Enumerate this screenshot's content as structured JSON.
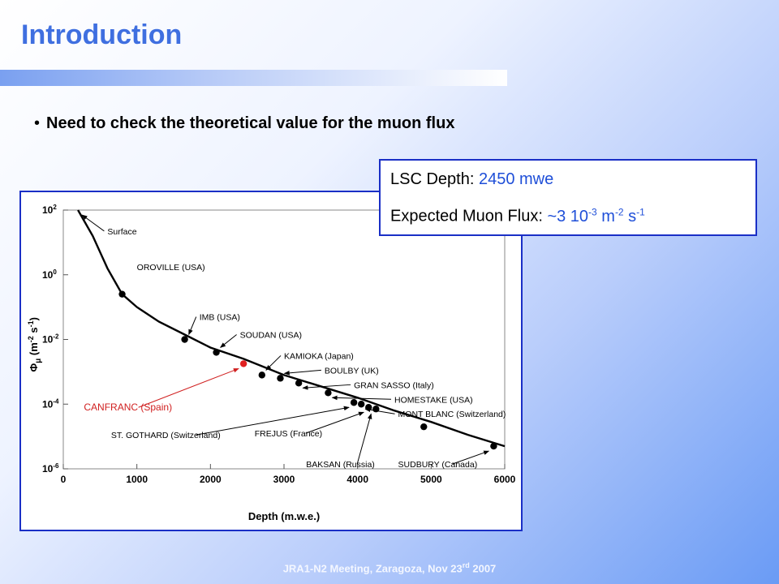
{
  "slide": {
    "title": "Introduction",
    "bullet": "Need to check the theoretical value for the muon flux",
    "footer_prefix": "JRA1-N2 Meeting, Zaragoza, Nov 23",
    "footer_sup": "rd",
    "footer_suffix": " 2007"
  },
  "info_box": {
    "depth_label": "LSC Depth: ",
    "depth_value": "2450 mwe",
    "flux_label": "Expected Muon Flux: ",
    "flux_value_base": "~3 10",
    "flux_value_exp": "-3",
    "flux_unit_m": " m",
    "flux_unit_m_exp": "-2",
    "flux_unit_s": " s",
    "flux_unit_s_exp": "-1"
  },
  "chart_data": {
    "type": "line",
    "title": "",
    "xlabel": "Depth (m.w.e.)",
    "ylabel_parts": [
      "Φ",
      "μ",
      " (m",
      "-2",
      " s",
      "-1",
      ")"
    ],
    "xlim": [
      0,
      6000
    ],
    "ylim_log10": [
      -6,
      2
    ],
    "y_scale": "log",
    "grid": false,
    "x_ticks": [
      {
        "value": 0,
        "label": "0"
      },
      {
        "value": 1000,
        "label": "1000"
      },
      {
        "value": 2000,
        "label": "2000"
      },
      {
        "value": 3000,
        "label": "3000"
      },
      {
        "value": 4000,
        "label": "4000"
      },
      {
        "value": 5000,
        "label": "5000"
      },
      {
        "value": 6000,
        "label": "6000"
      }
    ],
    "y_ticks": [
      {
        "exp": 2,
        "base": "10",
        "sup": "2"
      },
      {
        "exp": 0,
        "base": "10",
        "sup": "0"
      },
      {
        "exp": -2,
        "base": "10",
        "sup": "-2"
      },
      {
        "exp": -4,
        "base": "10",
        "sup": "-4"
      },
      {
        "exp": -6,
        "base": "10",
        "sup": "-6"
      }
    ],
    "curve": [
      {
        "x": 200,
        "log10y": 2.0
      },
      {
        "x": 400,
        "log10y": 1.2
      },
      {
        "x": 600,
        "log10y": 0.2
      },
      {
        "x": 800,
        "log10y": -0.6
      },
      {
        "x": 1000,
        "log10y": -1.0
      },
      {
        "x": 1300,
        "log10y": -1.45
      },
      {
        "x": 1650,
        "log10y": -1.85
      },
      {
        "x": 2000,
        "log10y": -2.25
      },
      {
        "x": 2450,
        "log10y": -2.6
      },
      {
        "x": 3000,
        "log10y": -3.1
      },
      {
        "x": 3500,
        "log10y": -3.45
      },
      {
        "x": 4000,
        "log10y": -3.8
      },
      {
        "x": 4500,
        "log10y": -4.2
      },
      {
        "x": 5000,
        "log10y": -4.55
      },
      {
        "x": 5500,
        "log10y": -4.95
      },
      {
        "x": 6000,
        "log10y": -5.3
      }
    ],
    "labs": [
      {
        "name": "Surface",
        "x": 200,
        "log10y": 2.0,
        "marker": false,
        "red": false,
        "label_x": 600,
        "label_log10y": 1.25,
        "arrow": true
      },
      {
        "name": "OROVILLE (USA)",
        "x": 800,
        "log10y": -0.6,
        "marker": true,
        "red": false,
        "label_x": 1000,
        "label_log10y": 0.15,
        "arrow": false
      },
      {
        "name": "IMB (USA)",
        "x": 1650,
        "log10y": -2.0,
        "marker": true,
        "red": false,
        "label_x": 1850,
        "label_log10y": -1.4,
        "arrow": true
      },
      {
        "name": "SOUDAN (USA)",
        "x": 2080,
        "log10y": -2.4,
        "marker": true,
        "red": false,
        "label_x": 2400,
        "label_log10y": -1.95,
        "arrow": true
      },
      {
        "name": "CANFRANC (Spain)",
        "x": 2450,
        "log10y": -2.75,
        "marker": true,
        "red": true,
        "label_x": 280,
        "label_log10y": -4.2,
        "arrow": true
      },
      {
        "name": "KAMIOKA (Japan)",
        "x": 2700,
        "log10y": -3.1,
        "marker": true,
        "red": false,
        "label_x": 3000,
        "label_log10y": -2.6,
        "arrow": true
      },
      {
        "name": "BOULBY (UK)",
        "x": 2950,
        "log10y": -3.2,
        "marker": true,
        "red": false,
        "label_x": 3550,
        "label_log10y": -3.05,
        "arrow": true
      },
      {
        "name": "GRAN SASSO (Italy)",
        "x": 3200,
        "log10y": -3.35,
        "marker": true,
        "red": false,
        "label_x": 3950,
        "label_log10y": -3.5,
        "arrow": true
      },
      {
        "name": "HOMESTAKE (USA)",
        "x": 3600,
        "log10y": -3.65,
        "marker": true,
        "red": false,
        "label_x": 4500,
        "label_log10y": -3.95,
        "arrow": true
      },
      {
        "name": "MONT BLANC (Switzerland)",
        "x": 4050,
        "log10y": -4.0,
        "marker": true,
        "red": false,
        "label_x": 4550,
        "label_log10y": -4.4,
        "arrow": true
      },
      {
        "name": "FREJUS (France)",
        "x": 4150,
        "log10y": -4.1,
        "marker": true,
        "red": false,
        "label_x": 2600,
        "label_log10y": -5.0,
        "arrow": true
      },
      {
        "name": "BAKSAN (Russia)",
        "x": 4250,
        "log10y": -4.15,
        "marker": true,
        "red": false,
        "label_x": 3300,
        "label_log10y": -5.95,
        "arrow": true
      },
      {
        "name": "ST. GOTHARD (Switzerland)",
        "x": 3950,
        "log10y": -3.95,
        "marker": true,
        "red": false,
        "label_x": 650,
        "label_log10y": -5.05,
        "arrow": true
      },
      {
        "name": "SUDBURY (Canada)",
        "x": 5850,
        "log10y": -5.3,
        "marker": true,
        "red": false,
        "label_x": 4550,
        "label_log10y": -5.95,
        "arrow": true
      },
      {
        "name": "",
        "x": 4900,
        "log10y": -4.7,
        "marker": true,
        "red": false,
        "label_x": 4900,
        "label_log10y": -4.7,
        "arrow": false
      }
    ]
  }
}
